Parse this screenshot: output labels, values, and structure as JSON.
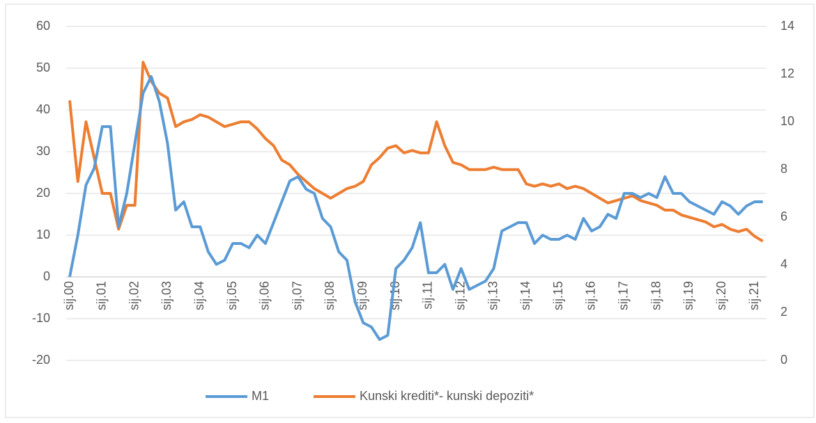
{
  "chart_data": {
    "type": "line",
    "categories": [
      "sij.00",
      null,
      null,
      null,
      "sij.01",
      null,
      null,
      null,
      "sij.02",
      null,
      null,
      null,
      "sij.03",
      null,
      null,
      null,
      "sij.04",
      null,
      null,
      null,
      "sij.05",
      null,
      null,
      null,
      "sij.06",
      null,
      null,
      null,
      "sij.07",
      null,
      null,
      null,
      "sij.08",
      null,
      null,
      null,
      "sij.09",
      null,
      null,
      null,
      "sij.10",
      null,
      null,
      null,
      "sij.11",
      null,
      null,
      null,
      "sij.12",
      null,
      null,
      null,
      "sij.13",
      null,
      null,
      null,
      "sij.14",
      null,
      null,
      null,
      "sij.15",
      null,
      null,
      null,
      "sij.16",
      null,
      null,
      null,
      "sij.17",
      null,
      null,
      null,
      "sij.18",
      null,
      null,
      null,
      "sij.19",
      null,
      null,
      null,
      "sij.20",
      null,
      null,
      null,
      "sij.21",
      null
    ],
    "series": [
      {
        "name": "M1",
        "color": "#5b9bd5",
        "values": [
          0,
          10,
          22,
          26,
          36,
          36,
          12,
          20,
          32,
          44,
          48,
          42,
          32,
          16,
          18,
          12,
          12,
          6,
          3,
          4,
          8,
          8,
          7,
          10,
          8,
          13,
          18,
          23,
          24,
          21,
          20,
          14,
          12,
          6,
          4,
          -6,
          -11,
          -12,
          -15,
          -14,
          2,
          4,
          7,
          13,
          1,
          1,
          3,
          -3,
          2,
          -3,
          -2,
          -1,
          2,
          11,
          12,
          13,
          13,
          8,
          10,
          9,
          9,
          10,
          9,
          14,
          11,
          12,
          15,
          14,
          20,
          20,
          19,
          20,
          19,
          24,
          20,
          20,
          18,
          17,
          16,
          15,
          18,
          17,
          15,
          17,
          18,
          18
        ]
      },
      {
        "name": "Kunski krediti*- kunski depoziti*",
        "color": "#ed7d31",
        "axis": "y2",
        "values": [
          10.9,
          7.5,
          10,
          8.5,
          7,
          7,
          5.5,
          6.5,
          6.5,
          12.5,
          11.7,
          11.2,
          11,
          9.8,
          10,
          10.1,
          10.3,
          10.2,
          10,
          9.8,
          9.9,
          10,
          10,
          9.7,
          9.3,
          9,
          8.4,
          8.2,
          7.8,
          7.5,
          7.2,
          7,
          6.8,
          7,
          7.2,
          7.3,
          7.5,
          8.2,
          8.5,
          8.9,
          9,
          8.7,
          8.8,
          8.7,
          8.7,
          10,
          9,
          8.3,
          8.2,
          8,
          8,
          8,
          8.1,
          8,
          8,
          8,
          7.4,
          7.3,
          7.4,
          7.3,
          7.4,
          7.2,
          7.3,
          7.2,
          7,
          6.8,
          6.6,
          6.7,
          6.8,
          6.9,
          6.7,
          6.6,
          6.5,
          6.3,
          6.3,
          6.1,
          6,
          5.9,
          5.8,
          5.6,
          5.7,
          5.5,
          5.4,
          5.5,
          5.2,
          5.0
        ]
      }
    ],
    "ylim": [
      -20,
      60
    ],
    "yticks": [
      -20,
      -10,
      0,
      10,
      20,
      30,
      40,
      50,
      60
    ],
    "y2lim": [
      0,
      14
    ],
    "y2ticks": [
      0,
      2,
      4,
      6,
      8,
      10,
      12,
      14
    ],
    "grid": true,
    "legend": "bottom"
  }
}
